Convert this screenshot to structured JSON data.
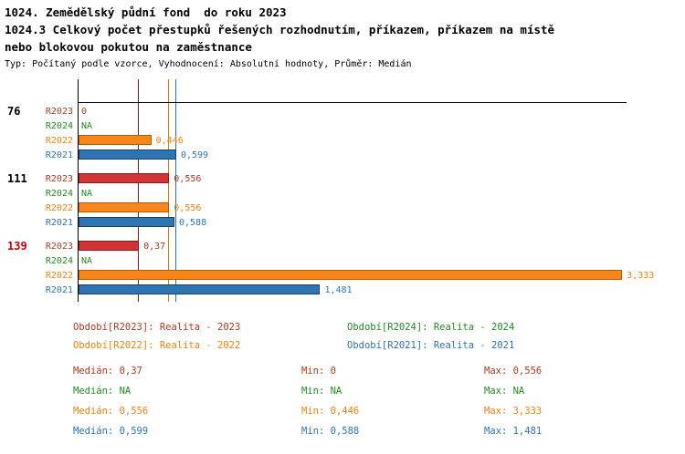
{
  "title": {
    "line1": "1024. Zemědělský půdní fond  do roku 2023",
    "line2": "1024.3 Celkový počet přestupků řešených rozhodnutím, příkazem, příkazem na místě",
    "line3": "nebo blokovou pokutou na zaměstnance",
    "subtitle": "Typ: Počítaný podle vzorce, Vyhodnocení: Absolutní hodnoty, Průměr: Medián"
  },
  "series_styles": {
    "R2023": {
      "text": "#b03a1e",
      "fill": "#d13434",
      "border": "#8b1a1a"
    },
    "R2024": {
      "text": "#228b22",
      "fill": "#2ca02c",
      "border": "#145214"
    },
    "R2022": {
      "text": "#ef820c",
      "fill": "#f8861b",
      "border": "#b35c00"
    },
    "R2021": {
      "text": "#2d74b5",
      "fill": "#2d74b5",
      "border": "#1b4060"
    }
  },
  "chart_data": {
    "type": "bar",
    "orientation": "horizontal",
    "x_max": 3.36,
    "grid": false,
    "series_order": [
      "R2023",
      "R2024",
      "R2022",
      "R2021"
    ],
    "groups": [
      {
        "label": "76",
        "label_color": "#000000",
        "bars": [
          {
            "series": "R2023",
            "value": 0,
            "display": "0"
          },
          {
            "series": "R2024",
            "value": null,
            "display": "NA"
          },
          {
            "series": "R2022",
            "value": 0.446,
            "display": "0,446"
          },
          {
            "series": "R2021",
            "value": 0.599,
            "display": "0,599"
          }
        ]
      },
      {
        "label": "111",
        "label_color": "#000000",
        "bars": [
          {
            "series": "R2023",
            "value": 0.556,
            "display": "0,556"
          },
          {
            "series": "R2024",
            "value": null,
            "display": "NA"
          },
          {
            "series": "R2022",
            "value": 0.556,
            "display": "0,556"
          },
          {
            "series": "R2021",
            "value": 0.588,
            "display": "0,588"
          }
        ]
      },
      {
        "label": "139",
        "label_color": "#cc0000",
        "bars": [
          {
            "series": "R2023",
            "value": 0.37,
            "display": "0,37"
          },
          {
            "series": "R2024",
            "value": null,
            "display": "NA"
          },
          {
            "series": "R2022",
            "value": 3.333,
            "display": "3,333"
          },
          {
            "series": "R2021",
            "value": 1.481,
            "display": "1,481"
          }
        ]
      }
    ],
    "reference_lines": [
      {
        "series": "R2023",
        "value": 0.37,
        "color": "#8b1a1a"
      },
      {
        "series": "R2022",
        "value": 0.556,
        "color": "#e07b00"
      },
      {
        "series": "R2021",
        "value": 0.599,
        "color": "#2d74b5"
      }
    ]
  },
  "legend": [
    {
      "series": "R2023",
      "label": "Období[R2023]: Realita - 2023"
    },
    {
      "series": "R2024",
      "label": "Období[R2024]: Realita - 2024"
    },
    {
      "series": "R2022",
      "label": "Období[R2022]: Realita - 2022"
    },
    {
      "series": "R2021",
      "label": "Období[R2021]: Realita - 2021"
    }
  ],
  "stats": [
    {
      "series": "R2023",
      "median": "Medián: 0,37",
      "min": "Min: 0",
      "max": "Max: 0,556"
    },
    {
      "series": "R2024",
      "median": "Medián: NA",
      "min": "Min: NA",
      "max": "Max: NA"
    },
    {
      "series": "R2022",
      "median": "Medián: 0,556",
      "min": "Min: 0,446",
      "max": "Max: 3,333"
    },
    {
      "series": "R2021",
      "median": "Medián: 0,599",
      "min": "Min: 0,588",
      "max": "Max: 1,481"
    }
  ]
}
